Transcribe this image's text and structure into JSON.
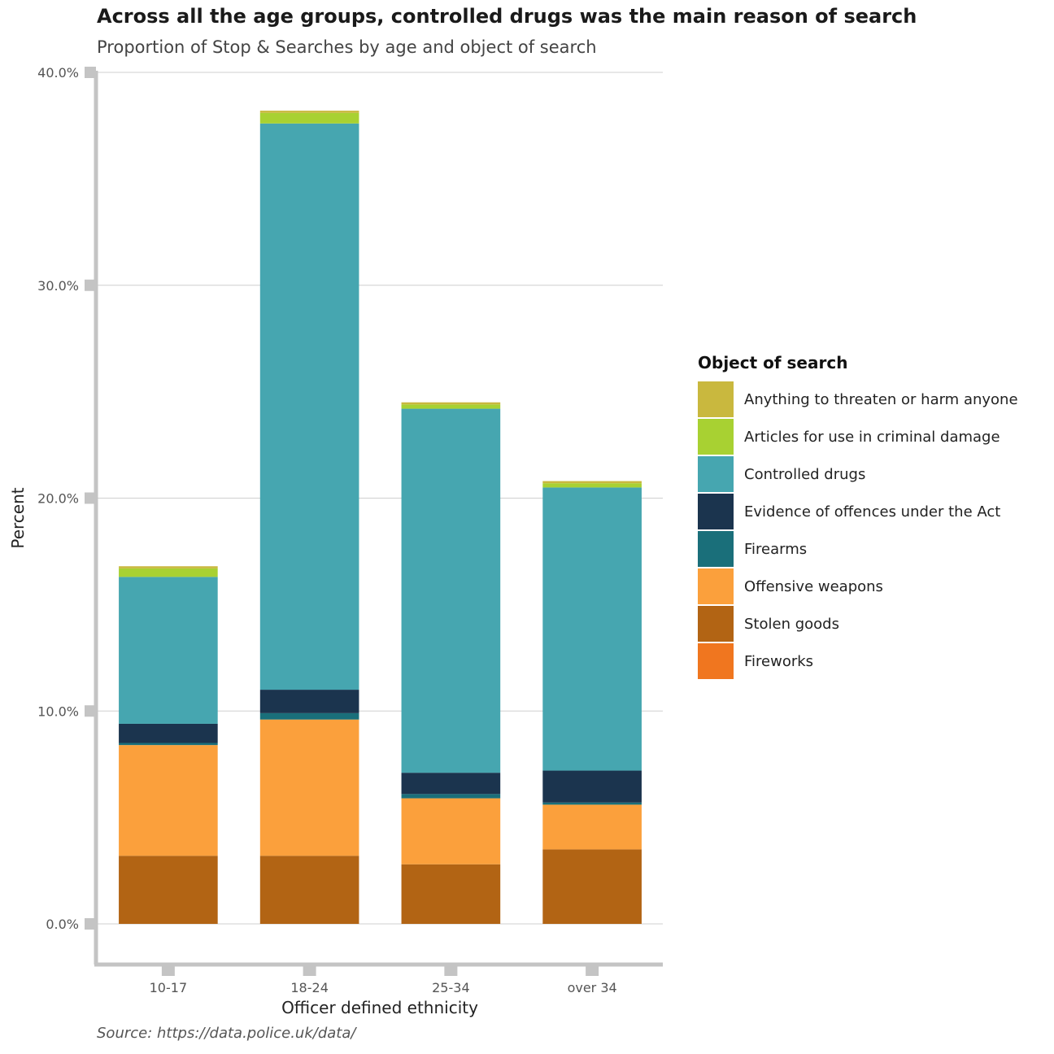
{
  "title": "Across all the age groups, controlled drugs was the main reason of search",
  "subtitle": "Proportion of Stop & Searches by age and object of search",
  "source": "Source:  https://data.police.uk/data/",
  "chart_data": {
    "type": "bar",
    "stacked": true,
    "xlabel": "Officer defined ethnicity",
    "ylabel": "Percent",
    "ylim": [
      0,
      40
    ],
    "yticks": [
      0,
      10,
      20,
      30,
      40
    ],
    "ytick_labels": [
      "0.0%",
      "10.0%",
      "20.0%",
      "30.0%",
      "40.0%"
    ],
    "grid": "horizontal",
    "legend_title": "Object of search",
    "legend_position": "right",
    "categories": [
      "10-17",
      "18-24",
      "25-34",
      "over 34"
    ],
    "series": [
      {
        "name": "Anything to threaten or harm anyone",
        "color": "#c9b83e",
        "values": [
          0.1,
          0.1,
          0.1,
          0.1
        ]
      },
      {
        "name": "Articles for use in criminal damage",
        "color": "#a8d132",
        "values": [
          0.4,
          0.5,
          0.2,
          0.2
        ]
      },
      {
        "name": "Controlled drugs",
        "color": "#46a6b0",
        "values": [
          6.9,
          26.6,
          17.1,
          13.3
        ]
      },
      {
        "name": "Evidence of offences under the Act",
        "color": "#1b344e",
        "values": [
          0.9,
          1.1,
          1.0,
          1.5
        ]
      },
      {
        "name": "Firearms",
        "color": "#1a6f7a",
        "values": [
          0.1,
          0.3,
          0.2,
          0.1
        ]
      },
      {
        "name": "Offensive weapons",
        "color": "#fba03c",
        "values": [
          5.2,
          6.4,
          3.1,
          2.1
        ]
      },
      {
        "name": "Stolen goods",
        "color": "#b26414",
        "values": [
          3.2,
          3.2,
          2.8,
          3.5
        ]
      },
      {
        "name": "Fireworks",
        "color": "#f0761f",
        "values": [
          0.0,
          0.0,
          0.0,
          0.0
        ]
      }
    ]
  }
}
